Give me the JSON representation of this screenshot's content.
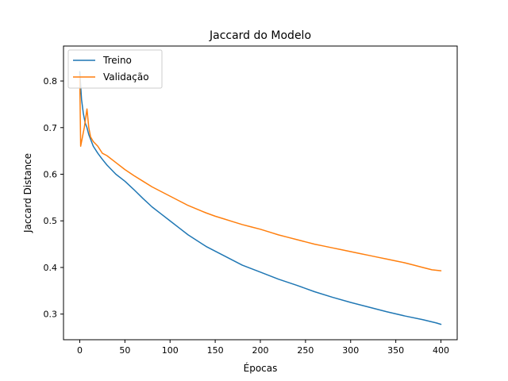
{
  "chart_data": {
    "type": "line",
    "title": "Jaccard do Modelo",
    "xlabel": "Épocas",
    "ylabel": "Jaccard Distance",
    "xlim": [
      -18,
      418
    ],
    "ylim": [
      0.245,
      0.875
    ],
    "xticks": [
      0,
      50,
      100,
      150,
      200,
      250,
      300,
      350,
      400
    ],
    "yticks": [
      0.3,
      0.4,
      0.5,
      0.6,
      0.7,
      0.8
    ],
    "grid": false,
    "legend": {
      "position": "top-left",
      "entries": [
        "Treino",
        "Validação"
      ]
    },
    "series": [
      {
        "name": "Treino",
        "color": "#1f77b4",
        "x": [
          0,
          2,
          4,
          6,
          8,
          10,
          12,
          15,
          20,
          25,
          30,
          40,
          50,
          60,
          70,
          80,
          90,
          100,
          110,
          120,
          140,
          160,
          180,
          200,
          220,
          240,
          260,
          280,
          300,
          320,
          340,
          360,
          380,
          395,
          400
        ],
        "y": [
          0.82,
          0.76,
          0.73,
          0.71,
          0.7,
          0.685,
          0.675,
          0.66,
          0.645,
          0.632,
          0.62,
          0.6,
          0.585,
          0.567,
          0.548,
          0.53,
          0.515,
          0.5,
          0.485,
          0.47,
          0.445,
          0.425,
          0.405,
          0.39,
          0.375,
          0.362,
          0.348,
          0.336,
          0.325,
          0.315,
          0.305,
          0.296,
          0.288,
          0.281,
          0.278
        ]
      },
      {
        "name": "Validação",
        "color": "#ff7f0e",
        "x": [
          0,
          1,
          3,
          5,
          8,
          10,
          12,
          15,
          20,
          25,
          30,
          40,
          50,
          60,
          70,
          80,
          90,
          100,
          110,
          120,
          130,
          140,
          150,
          160,
          170,
          180,
          190,
          200,
          210,
          220,
          230,
          240,
          250,
          260,
          270,
          280,
          290,
          300,
          310,
          320,
          330,
          340,
          350,
          360,
          370,
          380,
          390,
          400
        ],
        "y": [
          0.81,
          0.66,
          0.68,
          0.7,
          0.74,
          0.7,
          0.68,
          0.67,
          0.66,
          0.645,
          0.64,
          0.625,
          0.61,
          0.597,
          0.585,
          0.573,
          0.563,
          0.553,
          0.543,
          0.533,
          0.525,
          0.517,
          0.51,
          0.504,
          0.498,
          0.492,
          0.487,
          0.482,
          0.476,
          0.47,
          0.465,
          0.46,
          0.455,
          0.45,
          0.446,
          0.442,
          0.438,
          0.434,
          0.43,
          0.426,
          0.422,
          0.418,
          0.414,
          0.41,
          0.405,
          0.4,
          0.395,
          0.393
        ]
      }
    ]
  }
}
